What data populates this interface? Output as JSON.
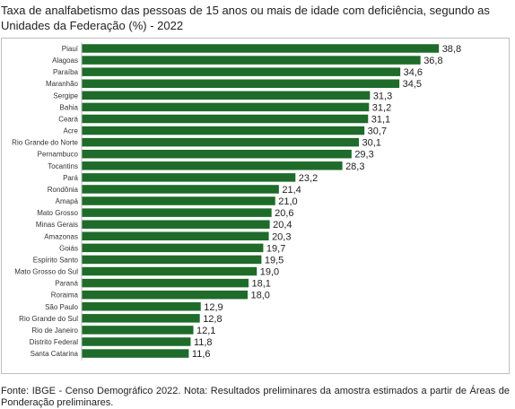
{
  "title": "Taxa de analfabetismo das pessoas de 15 anos ou mais de idade com deficiência, segundo as Unidades da Federação (%) - 2022",
  "source": "Fonte: IBGE - Censo Demográfico 2022. Nota: Resultados preliminares da amostra estimados a partir de Áreas de Ponderação preliminares.",
  "colors": {
    "bar": "#1e6b2a",
    "axis": "#bfbfbf",
    "frame": "#bfbfbf"
  },
  "chart_data": {
    "type": "bar",
    "orientation": "horizontal",
    "title": "Taxa de analfabetismo das pessoas de 15 anos ou mais de idade com deficiência, segundo as Unidades da Federação (%) - 2022",
    "xlabel": "",
    "ylabel": "",
    "grid": false,
    "legend": "none",
    "xlim": [
      0,
      40
    ],
    "categories": [
      "Piauí",
      "Alagoas",
      "Paraíba",
      "Maranhão",
      "Sergipe",
      "Bahia",
      "Ceará",
      "Acre",
      "Rio Grande do Norte",
      "Pernambuco",
      "Tocantins",
      "Pará",
      "Rondônia",
      "Amapá",
      "Mato Grosso",
      "Minas Gerais",
      "Amazonas",
      "Goiás",
      "Espírito Santo",
      "Mato Grosso do Sul",
      "Paraná",
      "Roraima",
      "São Paulo",
      "Rio Grande do Sul",
      "Rio de Janeiro",
      "Distrito Federal",
      "Santa Catarina"
    ],
    "values": [
      38.8,
      36.8,
      34.6,
      34.5,
      31.3,
      31.2,
      31.1,
      30.7,
      30.1,
      29.3,
      28.3,
      23.2,
      21.4,
      21.0,
      20.6,
      20.4,
      20.3,
      19.7,
      19.5,
      19.0,
      18.1,
      18.0,
      12.9,
      12.8,
      12.1,
      11.8,
      11.6
    ],
    "value_labels": [
      "38,8",
      "36,8",
      "34,6",
      "34,5",
      "31,3",
      "31,2",
      "31,1",
      "30,7",
      "30,1",
      "29,3",
      "28,3",
      "23,2",
      "21,4",
      "21,0",
      "20,6",
      "20,4",
      "20,3",
      "19,7",
      "19,5",
      "19,0",
      "18,1",
      "18,0",
      "12,9",
      "12,8",
      "12,1",
      "11,8",
      "11,6"
    ]
  }
}
